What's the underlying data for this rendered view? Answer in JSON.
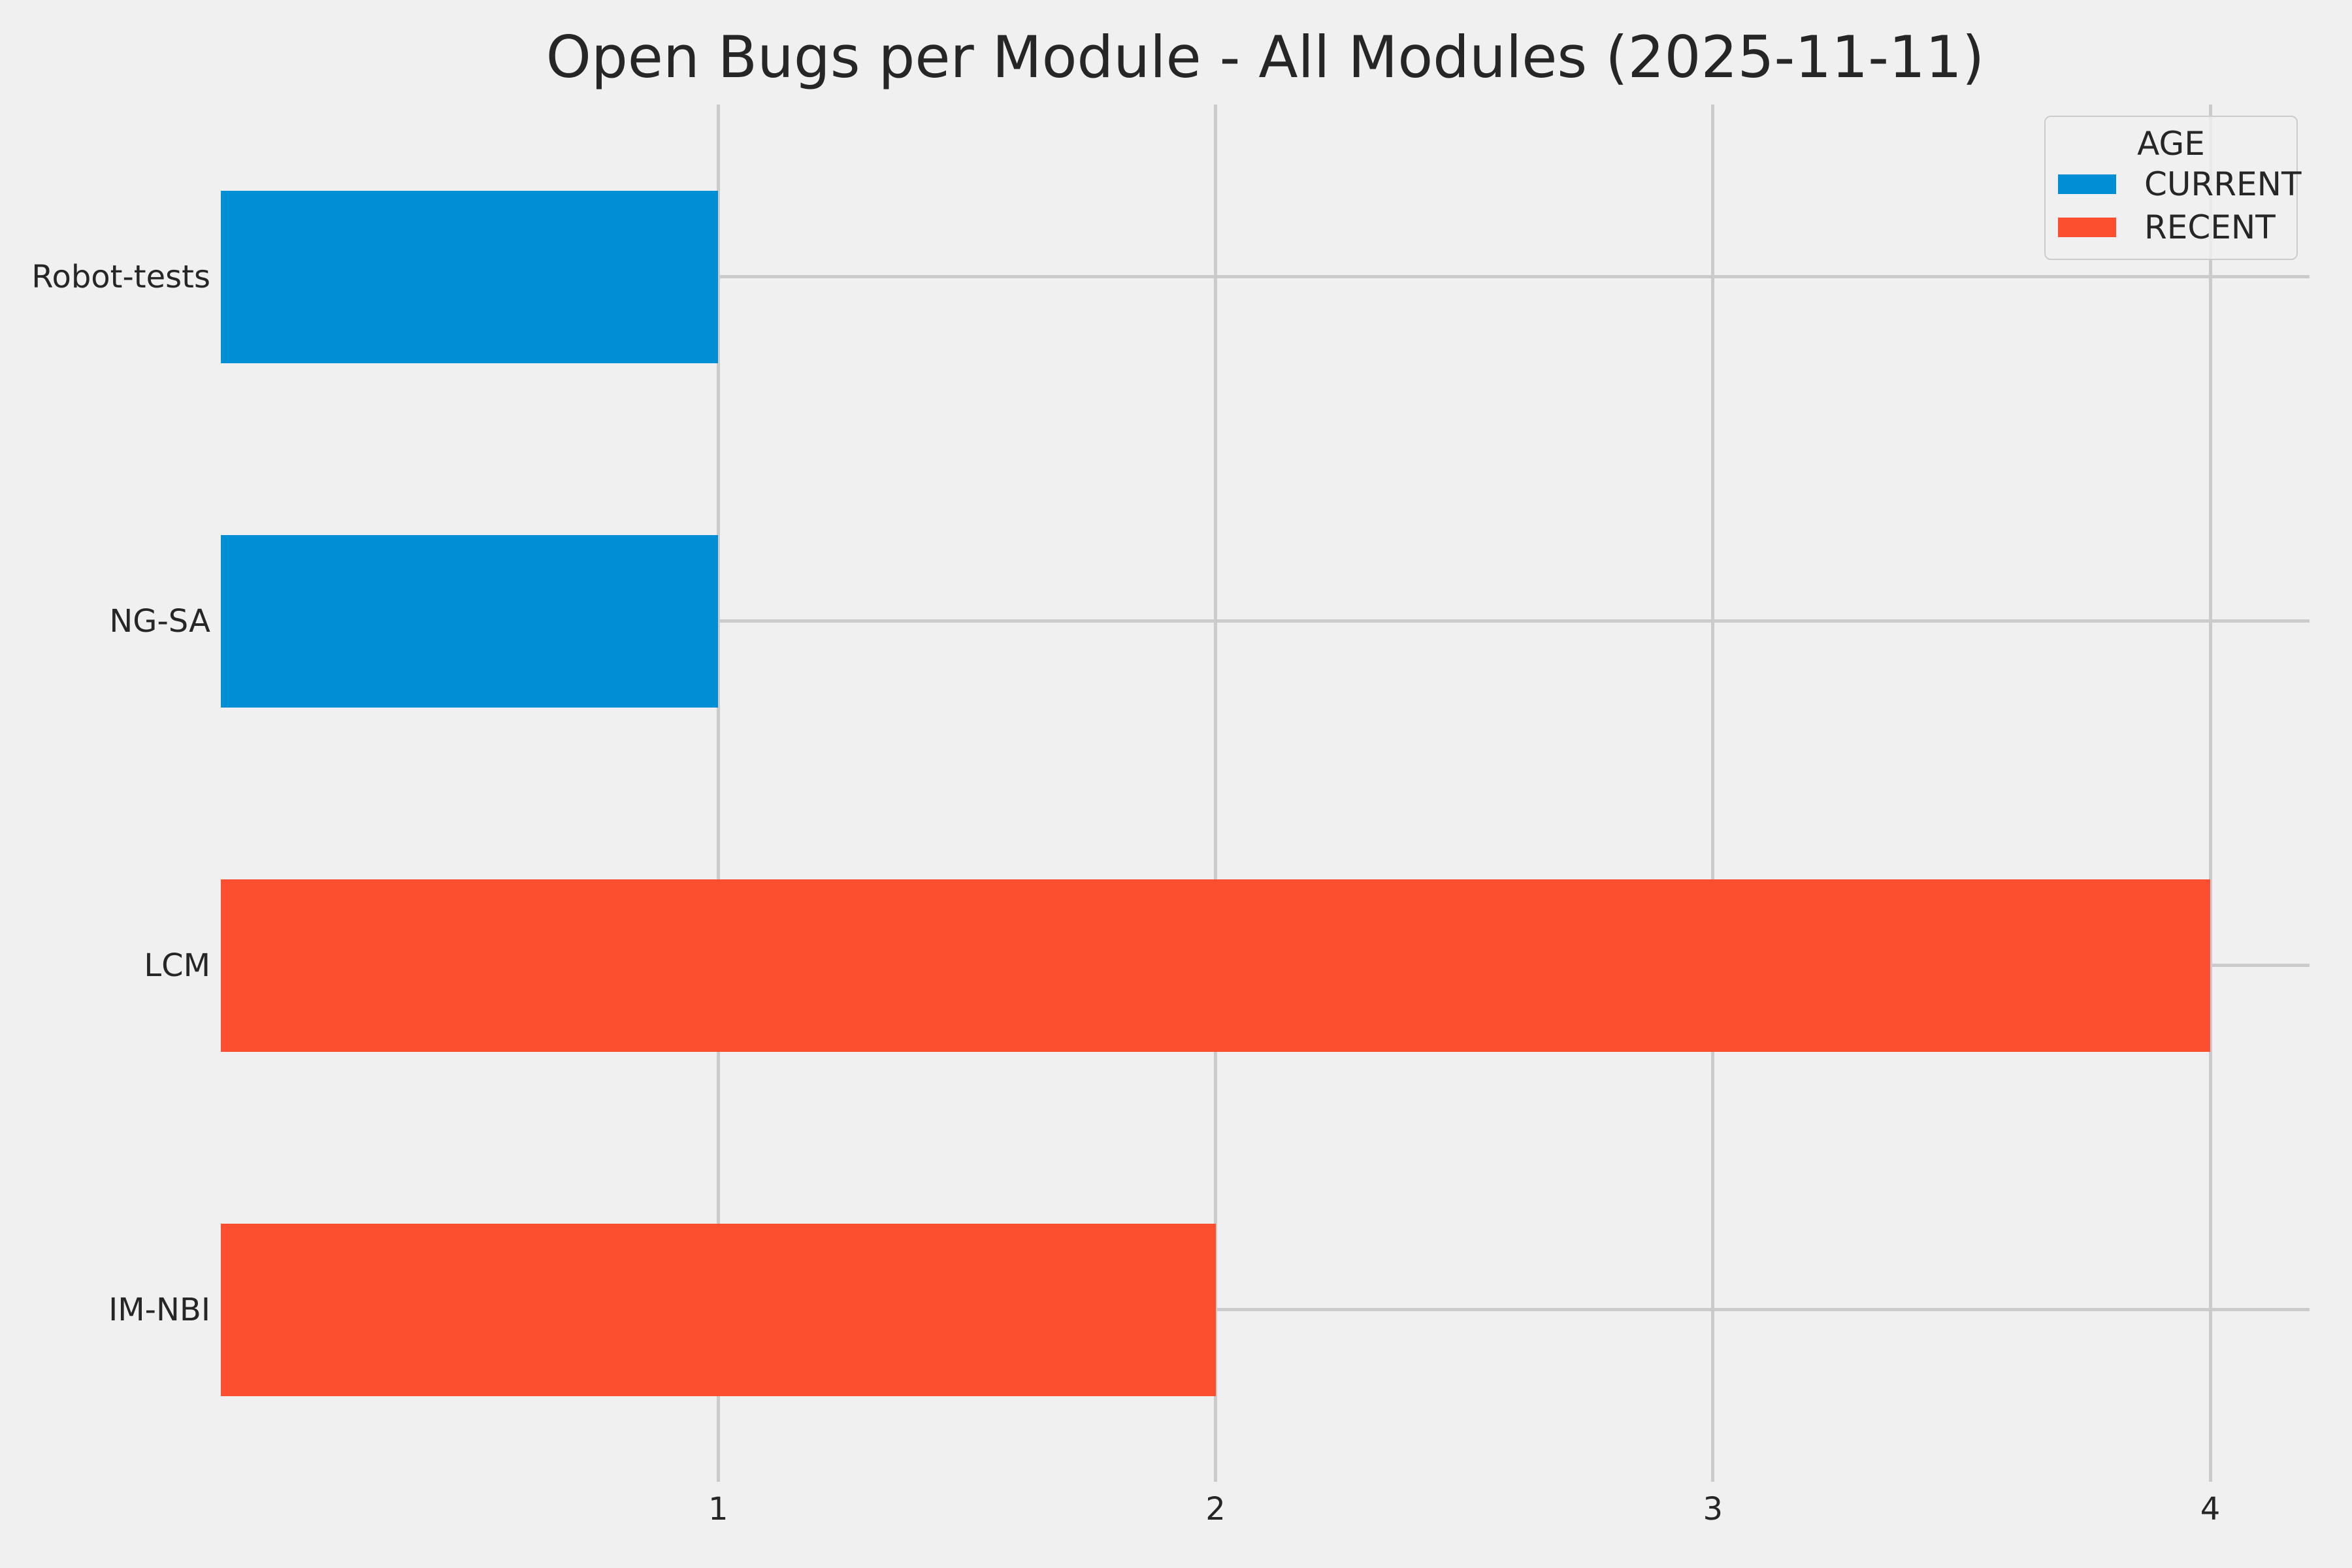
{
  "colors": {
    "background": "#f0f0f0",
    "grid": "#cbcbcb",
    "text": "#262626",
    "current": "#008fd5",
    "recent": "#fc4f30"
  },
  "chart_data": {
    "type": "bar",
    "orientation": "horizontal",
    "title": "Open Bugs per Module - All Modules (2025-11-11)",
    "categories": [
      "Robot-tests",
      "NG-SA",
      "LCM",
      "IM-NBI"
    ],
    "values": [
      1,
      1,
      4,
      2
    ],
    "bar_groups": [
      "CURRENT",
      "CURRENT",
      "RECENT",
      "RECENT"
    ],
    "bar_colors": [
      "#008fd5",
      "#008fd5",
      "#fc4f30",
      "#fc4f30"
    ],
    "xlabel": "",
    "ylabel": "",
    "xticks": [
      1,
      2,
      3,
      4
    ],
    "xlim": [
      0,
      4.2
    ],
    "grid": true,
    "legend": {
      "title": "AGE",
      "position": "upper-right",
      "entries": [
        {
          "label": "CURRENT",
          "color": "#008fd5"
        },
        {
          "label": "RECENT",
          "color": "#fc4f30"
        }
      ]
    }
  }
}
